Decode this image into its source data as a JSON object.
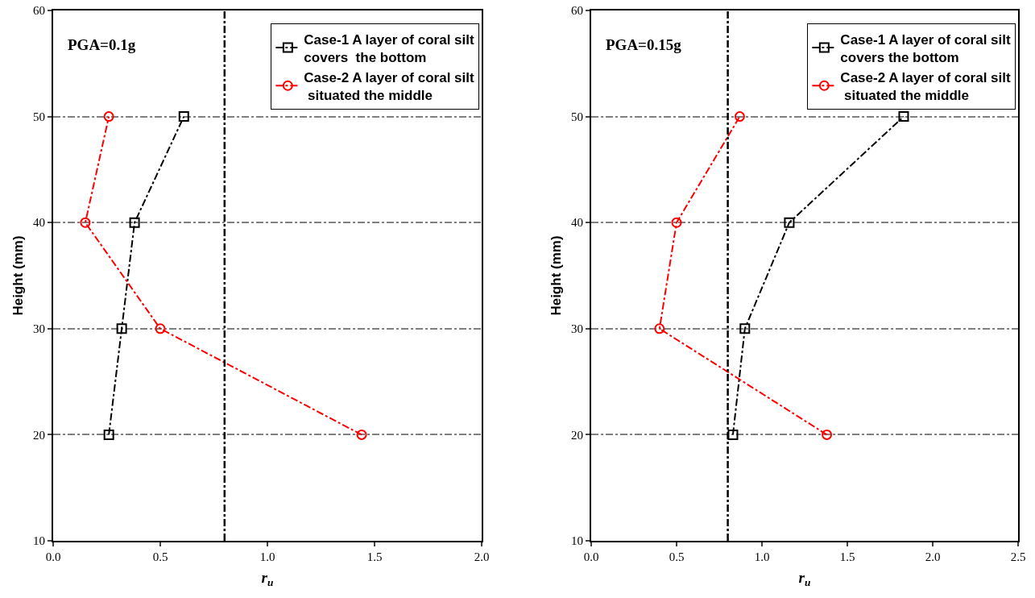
{
  "chart_data": [
    {
      "type": "line",
      "xlabel": "r$_{u}$",
      "ylabel": "Height (mm)",
      "annotations": [
        "PGA=0.1g"
      ],
      "xlim": [
        0,
        2
      ],
      "xticks": [
        {
          "value": 0,
          "label": "0.0"
        },
        0.5,
        {
          "value": 1,
          "label": "1.0"
        },
        1.5,
        {
          "value": 2,
          "label": "2.0"
        }
      ],
      "ylim": [
        10,
        60
      ],
      "yticks": [
        10,
        20,
        30,
        40,
        50,
        60
      ],
      "grid": "y",
      "legend": "top right",
      "line_style": "dashdot",
      "series": [
        {
          "name": "Case-1 A layer of coral silt\ncovers  the bottom",
          "color": "#000000",
          "marker": "square",
          "x": [
            0.26,
            0.32,
            0.38,
            0.61
          ],
          "values": [
            20,
            30,
            40,
            50
          ]
        },
        {
          "name": "Case-2 A layer of coral silt\n situated the middle",
          "color": "#ff0000",
          "marker": "circle",
          "x": [
            1.44,
            0.5,
            0.15,
            0.26
          ],
          "values": [
            20,
            30,
            40,
            50
          ]
        }
      ],
      "ref_lines": [
        {
          "axis": "x",
          "value": 0.8,
          "color": "#000000",
          "line_style": "dashdot"
        }
      ]
    },
    {
      "type": "line",
      "xlabel": "r$_{u}$",
      "ylabel": "Height (mm)",
      "annotations": [
        "PGA=0.15g"
      ],
      "xlim": [
        0,
        2.5
      ],
      "xticks": [
        {
          "value": 0,
          "label": "0.0"
        },
        0.5,
        {
          "value": 1,
          "label": "1.0"
        },
        1.5,
        {
          "value": 2,
          "label": "2.0"
        },
        2.5
      ],
      "ylim": [
        10,
        60
      ],
      "yticks": [
        10,
        20,
        30,
        40,
        50,
        60
      ],
      "grid": "y",
      "legend": "top right",
      "line_style": "dashdot",
      "series": [
        {
          "name": "Case-1 A layer of coral silt\ncovers the bottom",
          "color": "#000000",
          "marker": "square",
          "x": [
            0.83,
            0.9,
            1.16,
            1.83
          ],
          "values": [
            20,
            30,
            40,
            50
          ]
        },
        {
          "name": "Case-2 A layer of coral silt\n situated the middle",
          "color": "#ff0000",
          "marker": "circle",
          "x": [
            1.38,
            0.4,
            0.5,
            0.87
          ],
          "values": [
            20,
            30,
            40,
            50
          ]
        }
      ],
      "ref_lines": [
        {
          "axis": "x",
          "value": 0.8,
          "color": "#000000",
          "line_style": "dashdot"
        }
      ]
    }
  ]
}
